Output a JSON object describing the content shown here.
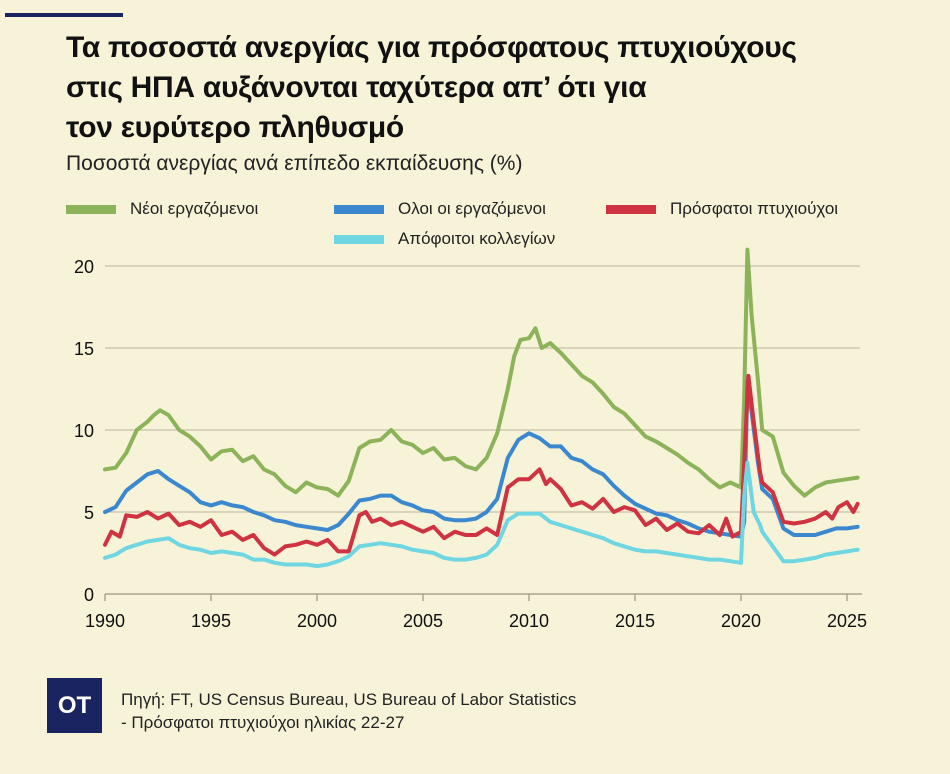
{
  "header": {
    "title_lines": [
      "Τα ποσοστά ανεργίας για πρόσφατους πτυχιούχους",
      "στις ΗΠΑ αυξάνονται ταχύτερα απ’ ότι για",
      "τον ευρύτερο πληθυσμό"
    ],
    "subtitle": "Ποσοστά ανεργίας ανά επίπεδο εκπαίδευσης (%)"
  },
  "footer": {
    "logo": "OT",
    "source_line1": "Πηγή: FT, US Census Bureau, US Bureau of Labor Statistics",
    "source_line2": "- Πρόσφατοι πτυχιούχοι ηλικίας 22-27"
  },
  "chart_data": {
    "type": "line",
    "title": "Τα ποσοστά ανεργίας για πρόσφατους πτυχιούχους στις ΗΠΑ αυξάνονται ταχύτερα απ’ ότι για τον ευρύτερο πληθυσμό",
    "subtitle": "Ποσοστά ανεργίας ανά επίπεδο εκπαίδευσης (%)",
    "xlabel": "",
    "ylabel": "",
    "xlim": [
      1990,
      2025.6
    ],
    "ylim": [
      0,
      21
    ],
    "x_ticks": [
      1990,
      1995,
      2000,
      2005,
      2010,
      2015,
      2020,
      2025
    ],
    "x_tick_labels": [
      "1990",
      "1995",
      "2000",
      "2005",
      "2010",
      "2015",
      "2020",
      "2025"
    ],
    "y_ticks": [
      0,
      5,
      10,
      15,
      20
    ],
    "y_tick_labels": [
      "0",
      "5",
      "10",
      "15",
      "20"
    ],
    "grid": "horizontal",
    "legend_position": "top",
    "series": [
      {
        "name": "Νέοι εργαζόμενοι",
        "color": "#8db35a",
        "x": [
          1990,
          1990.5,
          1991,
          1991.5,
          1992,
          1992.3,
          1992.6,
          1993,
          1993.5,
          1994,
          1994.5,
          1995,
          1995.5,
          1996,
          1996.5,
          1997,
          1997.5,
          1998,
          1998.5,
          1999,
          1999.5,
          2000,
          2000.5,
          2001,
          2001.5,
          2002,
          2002.5,
          2003,
          2003.5,
          2004,
          2004.5,
          2005,
          2005.5,
          2006,
          2006.5,
          2007,
          2007.5,
          2008,
          2008.5,
          2009,
          2009.3,
          2009.6,
          2010,
          2010.3,
          2010.6,
          2011,
          2011.5,
          2012,
          2012.5,
          2013,
          2013.5,
          2014,
          2014.5,
          2015,
          2015.5,
          2016,
          2016.5,
          2017,
          2017.5,
          2018,
          2018.5,
          2019,
          2019.5,
          2020,
          2020.15,
          2020.3,
          2020.5,
          2020.8,
          2021,
          2021.5,
          2022,
          2022.5,
          2023,
          2023.5,
          2024,
          2024.5,
          2025,
          2025.5
        ],
        "values": [
          7.6,
          7.7,
          8.6,
          10.0,
          10.5,
          10.9,
          11.2,
          10.9,
          10.0,
          9.6,
          9.0,
          8.2,
          8.7,
          8.8,
          8.1,
          8.4,
          7.6,
          7.3,
          6.6,
          6.2,
          6.8,
          6.5,
          6.4,
          6.0,
          6.9,
          8.9,
          9.3,
          9.4,
          10.0,
          9.3,
          9.1,
          8.6,
          8.9,
          8.2,
          8.3,
          7.8,
          7.6,
          8.3,
          9.8,
          12.5,
          14.5,
          15.5,
          15.6,
          16.2,
          15.0,
          15.3,
          14.7,
          14.0,
          13.3,
          12.9,
          12.2,
          11.4,
          11.0,
          10.3,
          9.6,
          9.3,
          8.9,
          8.5,
          8.0,
          7.6,
          7.0,
          6.5,
          6.8,
          6.5,
          12.0,
          21.0,
          17.0,
          13.0,
          10.0,
          9.6,
          7.4,
          6.6,
          6.0,
          6.5,
          6.8,
          6.9,
          7.0,
          7.1
        ]
      },
      {
        "name": "Ολοι οι εργαζόμενοι",
        "color": "#3b88cf",
        "x": [
          1990,
          1990.5,
          1991,
          1991.5,
          1992,
          1992.5,
          1993,
          1993.5,
          1994,
          1994.5,
          1995,
          1995.5,
          1996,
          1996.5,
          1997,
          1997.5,
          1998,
          1998.5,
          1999,
          1999.5,
          2000,
          2000.5,
          2001,
          2001.5,
          2002,
          2002.5,
          2003,
          2003.5,
          2004,
          2004.5,
          2005,
          2005.5,
          2006,
          2006.5,
          2007,
          2007.5,
          2008,
          2008.5,
          2009,
          2009.5,
          2010,
          2010.5,
          2011,
          2011.5,
          2012,
          2012.5,
          2013,
          2013.5,
          2014,
          2014.5,
          2015,
          2015.5,
          2016,
          2016.5,
          2017,
          2017.5,
          2018,
          2018.5,
          2019,
          2019.5,
          2020,
          2020.15,
          2020.3,
          2020.5,
          2020.8,
          2021,
          2021.5,
          2022,
          2022.5,
          2023,
          2023.5,
          2024,
          2024.5,
          2025,
          2025.5
        ],
        "values": [
          5.0,
          5.3,
          6.3,
          6.8,
          7.3,
          7.5,
          7.0,
          6.6,
          6.2,
          5.6,
          5.4,
          5.6,
          5.4,
          5.3,
          5.0,
          4.8,
          4.5,
          4.4,
          4.2,
          4.1,
          4.0,
          3.9,
          4.2,
          4.9,
          5.7,
          5.8,
          6.0,
          6.0,
          5.6,
          5.4,
          5.1,
          5.0,
          4.6,
          4.5,
          4.5,
          4.6,
          5.0,
          5.8,
          8.3,
          9.4,
          9.8,
          9.5,
          9.0,
          9.0,
          8.3,
          8.1,
          7.6,
          7.3,
          6.6,
          6.0,
          5.5,
          5.2,
          4.9,
          4.8,
          4.5,
          4.3,
          4.0,
          3.8,
          3.7,
          3.6,
          3.5,
          4.4,
          13.0,
          11.1,
          8.0,
          6.4,
          5.8,
          4.0,
          3.6,
          3.6,
          3.6,
          3.8,
          4.0,
          4.0,
          4.1
        ]
      },
      {
        "name": "Πρόσφατοι πτυχιούχοι",
        "color": "#cf3341",
        "x": [
          1990,
          1990.3,
          1990.7,
          1991,
          1991.5,
          1992,
          1992.5,
          1993,
          1993.5,
          1994,
          1994.5,
          1995,
          1995.5,
          1996,
          1996.5,
          1997,
          1997.5,
          1998,
          1998.5,
          1999,
          1999.5,
          2000,
          2000.5,
          2001,
          2001.5,
          2002,
          2002.3,
          2002.6,
          2003,
          2003.5,
          2004,
          2004.5,
          2005,
          2005.5,
          2006,
          2006.5,
          2007,
          2007.5,
          2008,
          2008.5,
          2009,
          2009.5,
          2010,
          2010.5,
          2010.8,
          2011,
          2011.5,
          2012,
          2012.5,
          2013,
          2013.5,
          2014,
          2014.5,
          2015,
          2015.5,
          2016,
          2016.5,
          2017,
          2017.5,
          2018,
          2018.5,
          2019,
          2019.3,
          2019.6,
          2020,
          2020.15,
          2020.35,
          2020.6,
          2020.9,
          2021,
          2021.5,
          2022,
          2022.5,
          2023,
          2023.5,
          2024,
          2024.3,
          2024.6,
          2025,
          2025.3,
          2025.5
        ],
        "values": [
          3.0,
          3.8,
          3.5,
          4.8,
          4.7,
          5.0,
          4.6,
          4.9,
          4.2,
          4.4,
          4.1,
          4.5,
          3.6,
          3.8,
          3.3,
          3.6,
          2.8,
          2.4,
          2.9,
          3.0,
          3.2,
          3.0,
          3.3,
          2.6,
          2.6,
          4.8,
          5.0,
          4.4,
          4.6,
          4.2,
          4.4,
          4.1,
          3.8,
          4.1,
          3.4,
          3.8,
          3.6,
          3.6,
          4.0,
          3.6,
          6.5,
          7.0,
          7.0,
          7.6,
          6.7,
          7.0,
          6.4,
          5.4,
          5.6,
          5.2,
          5.8,
          5.0,
          5.3,
          5.1,
          4.2,
          4.6,
          3.9,
          4.3,
          3.8,
          3.7,
          4.2,
          3.6,
          4.6,
          3.5,
          3.8,
          8.0,
          13.3,
          10.5,
          7.4,
          6.8,
          6.2,
          4.4,
          4.3,
          4.4,
          4.6,
          5.0,
          4.6,
          5.3,
          5.6,
          5.0,
          5.5
        ]
      },
      {
        "name": "Απόφοιτοι κολλεγίων",
        "color": "#6fd6e2",
        "x": [
          1990,
          1990.5,
          1991,
          1991.5,
          1992,
          1992.5,
          1993,
          1993.5,
          1994,
          1994.5,
          1995,
          1995.5,
          1996,
          1996.5,
          1997,
          1997.5,
          1998,
          1998.5,
          1999,
          1999.5,
          2000,
          2000.5,
          2001,
          2001.5,
          2002,
          2002.5,
          2003,
          2003.5,
          2004,
          2004.5,
          2005,
          2005.5,
          2006,
          2006.5,
          2007,
          2007.5,
          2008,
          2008.5,
          2009,
          2009.5,
          2010,
          2010.5,
          2011,
          2011.5,
          2012,
          2012.5,
          2013,
          2013.5,
          2014,
          2014.5,
          2015,
          2015.5,
          2016,
          2016.5,
          2017,
          2017.5,
          2018,
          2018.5,
          2019,
          2019.5,
          2020,
          2020.15,
          2020.3,
          2020.6,
          2020.9,
          2021,
          2021.5,
          2022,
          2022.5,
          2023,
          2023.5,
          2024,
          2024.5,
          2025,
          2025.5
        ],
        "values": [
          2.2,
          2.4,
          2.8,
          3.0,
          3.2,
          3.3,
          3.4,
          3.0,
          2.8,
          2.7,
          2.5,
          2.6,
          2.5,
          2.4,
          2.1,
          2.1,
          1.9,
          1.8,
          1.8,
          1.8,
          1.7,
          1.8,
          2.0,
          2.3,
          2.9,
          3.0,
          3.1,
          3.0,
          2.9,
          2.7,
          2.6,
          2.5,
          2.2,
          2.1,
          2.1,
          2.2,
          2.4,
          3.0,
          4.5,
          4.9,
          4.9,
          4.9,
          4.4,
          4.2,
          4.0,
          3.8,
          3.6,
          3.4,
          3.1,
          2.9,
          2.7,
          2.6,
          2.6,
          2.5,
          2.4,
          2.3,
          2.2,
          2.1,
          2.1,
          2.0,
          1.9,
          6.0,
          8.0,
          5.0,
          4.2,
          3.8,
          2.9,
          2.0,
          2.0,
          2.1,
          2.2,
          2.4,
          2.5,
          2.6,
          2.7
        ]
      }
    ]
  }
}
